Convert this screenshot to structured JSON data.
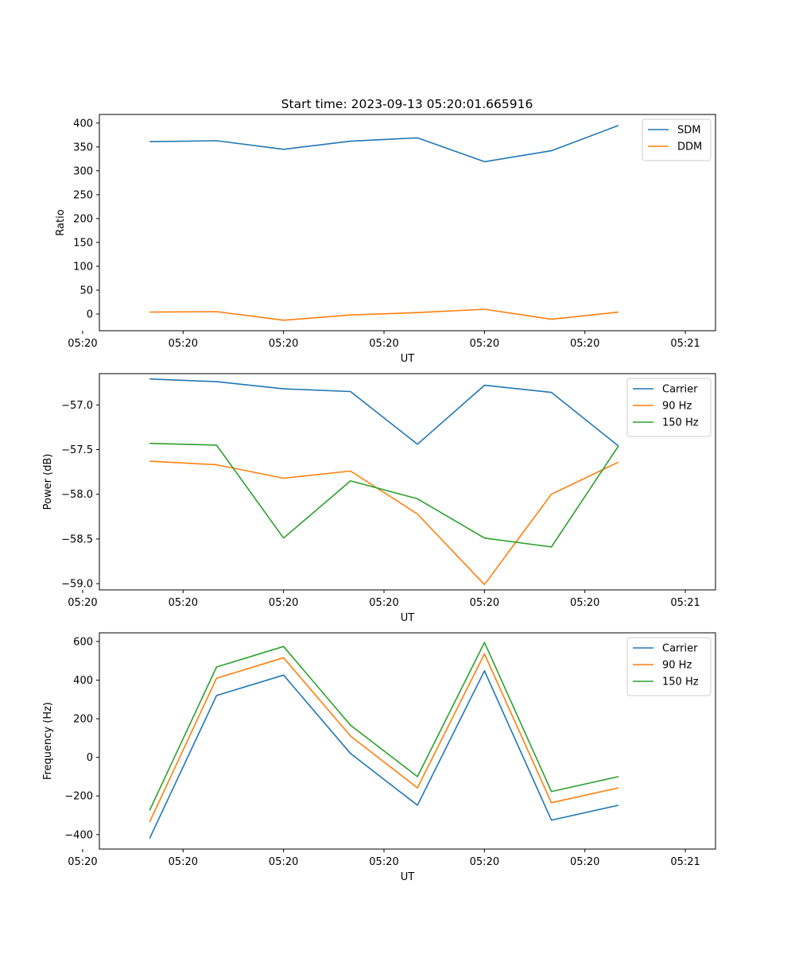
{
  "figure_title": "Start time: 2023-09-13 05:20:01.665916",
  "chart_data": [
    {
      "type": "line",
      "title": "Start time: 2023-09-13 05:20:01.665916",
      "xlabel": "UT",
      "ylabel": "Ratio",
      "x": [
        1,
        2,
        3,
        4,
        5,
        6,
        7,
        8
      ],
      "xlim": [
        0.25,
        9.45
      ],
      "x_ticks": [
        {
          "at": 0,
          "label": "05:20"
        },
        {
          "at": 1.5,
          "label": "05:20"
        },
        {
          "at": 3,
          "label": "05:20"
        },
        {
          "at": 4.5,
          "label": "05:20"
        },
        {
          "at": 6,
          "label": "05:20"
        },
        {
          "at": 7.5,
          "label": "05:20"
        },
        {
          "at": 9,
          "label": "05:21"
        }
      ],
      "ylim": [
        -35,
        418
      ],
      "y_ticks": [
        0,
        50,
        100,
        150,
        200,
        250,
        300,
        350,
        400
      ],
      "y_tick_labels": [
        "0",
        "50",
        "100",
        "150",
        "200",
        "250",
        "300",
        "350",
        "400"
      ],
      "legend_position": "top-right",
      "series": [
        {
          "name": "SDM",
          "color": "#1f77b4",
          "values": [
            361,
            363,
            345,
            362,
            369,
            319,
            342,
            395
          ]
        },
        {
          "name": "DDM",
          "color": "#ff7f0e",
          "values": [
            4,
            5,
            -13,
            -2,
            3,
            10,
            -11,
            4
          ]
        }
      ]
    },
    {
      "type": "line",
      "title": "",
      "xlabel": "UT",
      "ylabel": "Power (dB)",
      "x": [
        1,
        2,
        3,
        4,
        5,
        6,
        7,
        8
      ],
      "xlim": [
        0.25,
        9.45
      ],
      "x_ticks": [
        {
          "at": 0,
          "label": "05:20"
        },
        {
          "at": 1.5,
          "label": "05:20"
        },
        {
          "at": 3,
          "label": "05:20"
        },
        {
          "at": 4.5,
          "label": "05:20"
        },
        {
          "at": 6,
          "label": "05:20"
        },
        {
          "at": 7.5,
          "label": "05:20"
        },
        {
          "at": 9,
          "label": "05:21"
        }
      ],
      "ylim": [
        -59.07,
        -56.65
      ],
      "y_ticks": [
        -59.0,
        -58.5,
        -58.0,
        -57.5,
        -57.0
      ],
      "y_tick_labels": [
        "−59.0",
        "−58.5",
        "−58.0",
        "−57.5",
        "−57.0"
      ],
      "legend_position": "top-right",
      "series": [
        {
          "name": "Carrier",
          "color": "#1f77b4",
          "values": [
            -56.71,
            -56.74,
            -56.82,
            -56.85,
            -57.44,
            -56.78,
            -56.86,
            -57.46
          ]
        },
        {
          "name": "90 Hz",
          "color": "#ff7f0e",
          "values": [
            -57.63,
            -57.67,
            -57.82,
            -57.74,
            -58.22,
            -59.01,
            -58.0,
            -57.64
          ]
        },
        {
          "name": "150 Hz",
          "color": "#2ca02c",
          "values": [
            -57.43,
            -57.45,
            -58.49,
            -57.85,
            -58.05,
            -58.49,
            -58.59,
            -57.46
          ]
        }
      ]
    },
    {
      "type": "line",
      "title": "",
      "xlabel": "UT",
      "ylabel": "Frequency (Hz)",
      "x": [
        1,
        2,
        3,
        4,
        5,
        6,
        7,
        8
      ],
      "xlim": [
        0.25,
        9.45
      ],
      "x_ticks": [
        {
          "at": 0,
          "label": "05:20"
        },
        {
          "at": 1.5,
          "label": "05:20"
        },
        {
          "at": 3,
          "label": "05:20"
        },
        {
          "at": 4.5,
          "label": "05:20"
        },
        {
          "at": 6,
          "label": "05:20"
        },
        {
          "at": 7.5,
          "label": "05:20"
        },
        {
          "at": 9,
          "label": "05:21"
        }
      ],
      "ylim": [
        -475,
        645
      ],
      "y_ticks": [
        -400,
        -200,
        0,
        200,
        400,
        600
      ],
      "y_tick_labels": [
        "−400",
        "−200",
        "0",
        "200",
        "400",
        "600"
      ],
      "legend_position": "top-right",
      "series": [
        {
          "name": "Carrier",
          "color": "#1f77b4",
          "values": [
            -420,
            320,
            426,
            20,
            -248,
            448,
            -325,
            -248
          ]
        },
        {
          "name": "90 Hz",
          "color": "#ff7f0e",
          "values": [
            -335,
            410,
            516,
            110,
            -158,
            536,
            -235,
            -158
          ]
        },
        {
          "name": "150 Hz",
          "color": "#2ca02c",
          "values": [
            -275,
            468,
            574,
            166,
            -100,
            595,
            -177,
            -100
          ]
        }
      ]
    }
  ]
}
